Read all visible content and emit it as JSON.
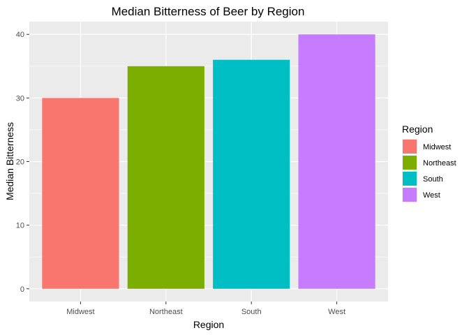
{
  "chart_data": {
    "type": "bar",
    "title": "Median Bitterness of Beer by Region",
    "xlabel": "Region",
    "ylabel": "Median Bitterness",
    "categories": [
      "Midwest",
      "Northeast",
      "South",
      "West"
    ],
    "values": [
      30,
      35,
      36,
      40
    ],
    "ylim": [
      0,
      42
    ],
    "yticks": [
      0,
      10,
      20,
      30,
      40
    ],
    "grid": true,
    "colors": [
      "#F8766D",
      "#7CAE00",
      "#00BFC4",
      "#C77CFF"
    ],
    "panel_background": "#EBEBEB",
    "legend": {
      "title": "Region",
      "placement": "right",
      "entries": [
        "Midwest",
        "Northeast",
        "South",
        "West"
      ]
    }
  }
}
